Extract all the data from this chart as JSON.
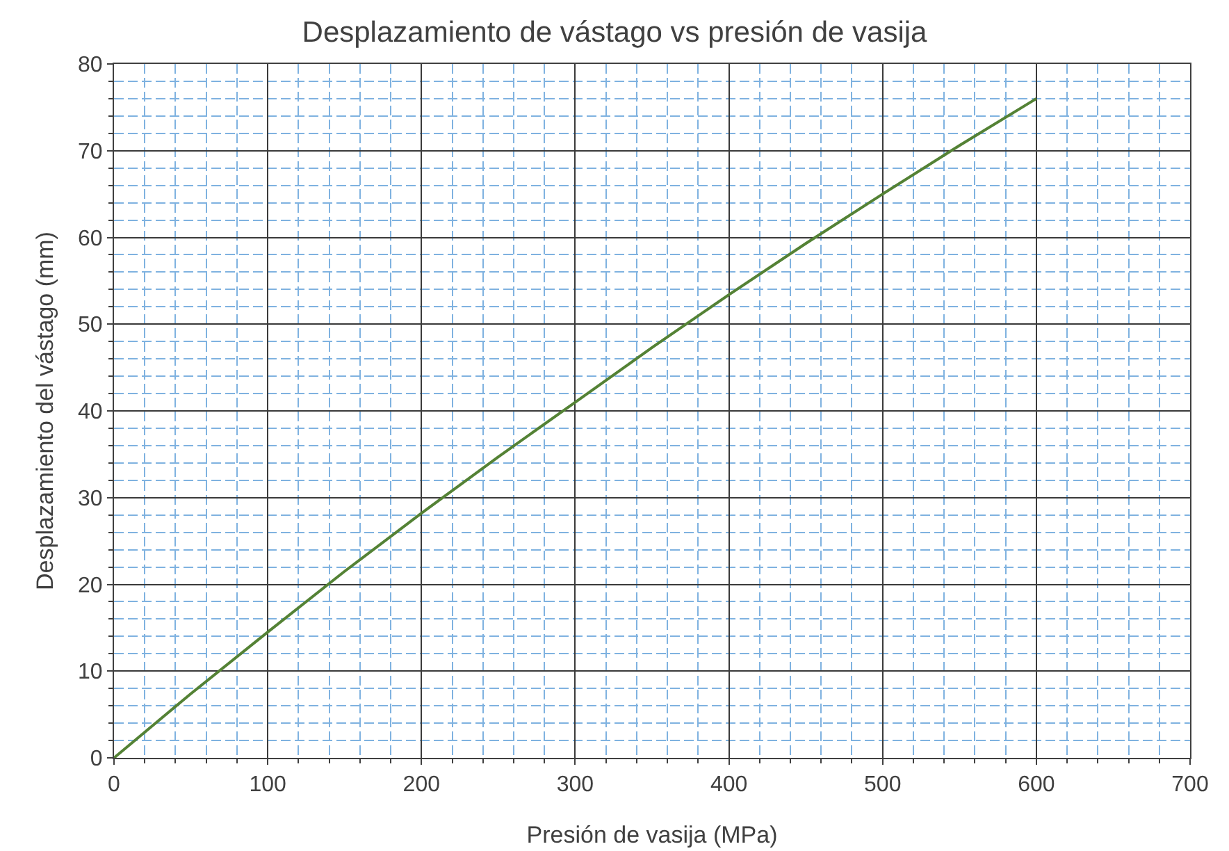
{
  "chart_data": {
    "type": "line",
    "title": "Desplazamiento de vástago vs presión de vasija",
    "xlabel": "Presión de vasija (MPa)",
    "ylabel": "Desplazamiento del vástago (mm)",
    "x": [
      0,
      50,
      100,
      150,
      200,
      250,
      300,
      350,
      400,
      450,
      500,
      550,
      600
    ],
    "series": [
      {
        "color": "#548235",
        "values": [
          0,
          7.4,
          14.5,
          21.5,
          28.2,
          34.7,
          41,
          47.3,
          53.4,
          59.3,
          65,
          70.6,
          76
        ]
      }
    ],
    "xlim": [
      0,
      700
    ],
    "xticks": [
      0,
      {
        "value": 20,
        "label": null
      },
      {
        "value": 40,
        "label": null
      },
      {
        "value": 60,
        "label": null
      },
      {
        "value": 80,
        "label": null
      },
      100,
      {
        "value": 120,
        "label": null
      },
      {
        "value": 140,
        "label": null
      },
      {
        "value": 160,
        "label": null
      },
      {
        "value": 180,
        "label": null
      },
      200,
      {
        "value": 220,
        "label": null
      },
      {
        "value": 240,
        "label": null
      },
      {
        "value": 260,
        "label": null
      },
      {
        "value": 280,
        "label": null
      },
      300,
      {
        "value": 320,
        "label": null
      },
      {
        "value": 340,
        "label": null
      },
      {
        "value": 360,
        "label": null
      },
      {
        "value": 380,
        "label": null
      },
      400,
      {
        "value": 420,
        "label": null
      },
      {
        "value": 440,
        "label": null
      },
      {
        "value": 460,
        "label": null
      },
      {
        "value": 480,
        "label": null
      },
      500,
      {
        "value": 520,
        "label": null
      },
      {
        "value": 540,
        "label": null
      },
      {
        "value": 560,
        "label": null
      },
      {
        "value": 580,
        "label": null
      },
      600,
      {
        "value": 620,
        "label": null
      },
      {
        "value": 640,
        "label": null
      },
      {
        "value": 660,
        "label": null
      },
      {
        "value": 680,
        "label": null
      },
      700
    ],
    "ylim": [
      0,
      80
    ],
    "yticks": [
      0,
      {
        "value": 2,
        "label": null
      },
      {
        "value": 4,
        "label": null
      },
      {
        "value": 6,
        "label": null
      },
      {
        "value": 8,
        "label": null
      },
      10,
      {
        "value": 12,
        "label": null
      },
      {
        "value": 14,
        "label": null
      },
      {
        "value": 16,
        "label": null
      },
      {
        "value": 18,
        "label": null
      },
      20,
      {
        "value": 22,
        "label": null
      },
      {
        "value": 24,
        "label": null
      },
      {
        "value": 26,
        "label": null
      },
      {
        "value": 28,
        "label": null
      },
      30,
      {
        "value": 32,
        "label": null
      },
      {
        "value": 34,
        "label": null
      },
      {
        "value": 36,
        "label": null
      },
      {
        "value": 38,
        "label": null
      },
      40,
      {
        "value": 42,
        "label": null
      },
      {
        "value": 44,
        "label": null
      },
      {
        "value": 46,
        "label": null
      },
      {
        "value": 48,
        "label": null
      },
      50,
      {
        "value": 52,
        "label": null
      },
      {
        "value": 54,
        "label": null
      },
      {
        "value": 56,
        "label": null
      },
      {
        "value": 58,
        "label": null
      },
      60,
      {
        "value": 62,
        "label": null
      },
      {
        "value": 64,
        "label": null
      },
      {
        "value": 66,
        "label": null
      },
      {
        "value": 68,
        "label": null
      },
      70,
      {
        "value": 72,
        "label": null
      },
      {
        "value": 74,
        "label": null
      },
      {
        "value": 76,
        "label": null
      },
      {
        "value": 78,
        "label": null
      },
      80
    ],
    "grid": true,
    "marker": "none",
    "line_style": "solid"
  }
}
